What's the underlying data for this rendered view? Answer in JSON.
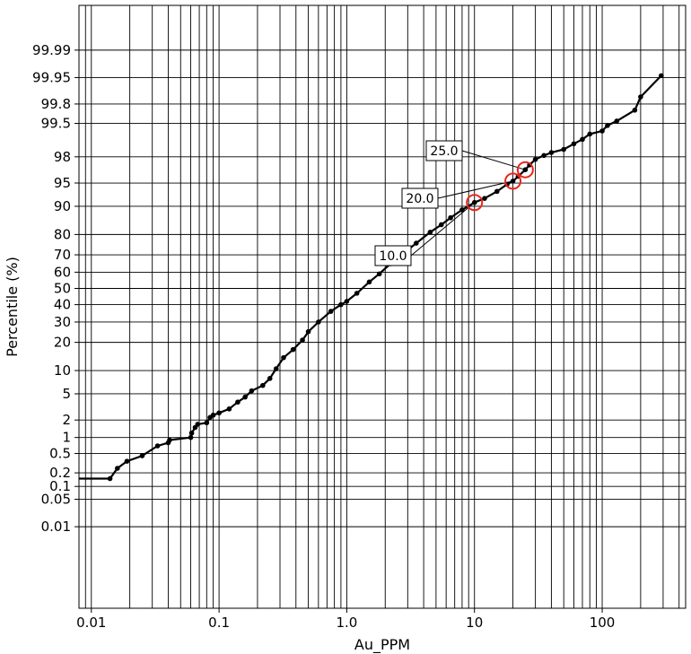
{
  "chart_data": {
    "type": "line",
    "subtype": "log-probability",
    "xlabel": "Au_PPM",
    "ylabel": "Percentile (%)",
    "x_scale": "log",
    "y_scale": "probability",
    "xlim": [
      0.008,
      450
    ],
    "ylim": [
      3e-05,
      99.9995
    ],
    "grid": true,
    "x_tick_labels": [
      {
        "value": 0.01,
        "label": "0.01"
      },
      {
        "value": 0.1,
        "label": "0.1"
      },
      {
        "value": 1,
        "label": "1.0"
      },
      {
        "value": 10,
        "label": "10"
      },
      {
        "value": 100,
        "label": "100"
      }
    ],
    "y_tick_labels": [
      {
        "value": 0.01,
        "label": "0.01"
      },
      {
        "value": 0.05,
        "label": "0.05"
      },
      {
        "value": 0.1,
        "label": "0.1"
      },
      {
        "value": 0.2,
        "label": "0.2"
      },
      {
        "value": 0.5,
        "label": "0.5"
      },
      {
        "value": 1,
        "label": "1"
      },
      {
        "value": 2,
        "label": "2"
      },
      {
        "value": 5,
        "label": "5"
      },
      {
        "value": 10,
        "label": "10"
      },
      {
        "value": 20,
        "label": "20"
      },
      {
        "value": 30,
        "label": "30"
      },
      {
        "value": 40,
        "label": "40"
      },
      {
        "value": 50,
        "label": "50"
      },
      {
        "value": 60,
        "label": "60"
      },
      {
        "value": 70,
        "label": "70"
      },
      {
        "value": 80,
        "label": "80"
      },
      {
        "value": 90,
        "label": "90"
      },
      {
        "value": 95,
        "label": "95"
      },
      {
        "value": 98,
        "label": "98"
      },
      {
        "value": 99.5,
        "label": "99.5"
      },
      {
        "value": 99.8,
        "label": "99.8"
      },
      {
        "value": 99.95,
        "label": "99.95"
      },
      {
        "value": 99.99,
        "label": "99.99"
      }
    ],
    "series": [
      {
        "color": "#000000",
        "points": [
          [
            0.008,
            0.15
          ],
          [
            0.014,
            0.15
          ],
          [
            0.016,
            0.25
          ],
          [
            0.019,
            0.35
          ],
          [
            0.025,
            0.45
          ],
          [
            0.033,
            0.7
          ],
          [
            0.04,
            0.8
          ],
          [
            0.041,
            0.9
          ],
          [
            0.06,
            1.0
          ],
          [
            0.061,
            1.2
          ],
          [
            0.065,
            1.5
          ],
          [
            0.068,
            1.7
          ],
          [
            0.08,
            1.8
          ],
          [
            0.085,
            2.2
          ],
          [
            0.09,
            2.4
          ],
          [
            0.1,
            2.6
          ],
          [
            0.12,
            3.0
          ],
          [
            0.14,
            3.8
          ],
          [
            0.16,
            4.5
          ],
          [
            0.18,
            5.5
          ],
          [
            0.22,
            6.5
          ],
          [
            0.25,
            8.0
          ],
          [
            0.28,
            10.5
          ],
          [
            0.32,
            14.0
          ],
          [
            0.38,
            17.0
          ],
          [
            0.45,
            21.0
          ],
          [
            0.5,
            25.0
          ],
          [
            0.6,
            30.0
          ],
          [
            0.75,
            36.0
          ],
          [
            0.9,
            40.0
          ],
          [
            1.0,
            42.0
          ],
          [
            1.2,
            47.0
          ],
          [
            1.5,
            54.0
          ],
          [
            1.8,
            59.0
          ],
          [
            2.2,
            65.0
          ],
          [
            2.8,
            71.0
          ],
          [
            3.5,
            76.0
          ],
          [
            4.5,
            81.0
          ],
          [
            5.5,
            84.0
          ],
          [
            6.5,
            86.5
          ],
          [
            8.0,
            89.0
          ],
          [
            10.0,
            91.0
          ],
          [
            12.0,
            92.0
          ],
          [
            15.0,
            93.5
          ],
          [
            18.0,
            94.8
          ],
          [
            20.0,
            95.3
          ],
          [
            22.0,
            96.0
          ],
          [
            25.0,
            96.8
          ],
          [
            27.0,
            97.3
          ],
          [
            30.0,
            97.8
          ],
          [
            35.0,
            98.1
          ],
          [
            40.0,
            98.3
          ],
          [
            50.0,
            98.5
          ],
          [
            60.0,
            98.8
          ],
          [
            70.0,
            99.0
          ],
          [
            80.0,
            99.2
          ],
          [
            100.0,
            99.3
          ],
          [
            110.0,
            99.45
          ],
          [
            130.0,
            99.55
          ],
          [
            180.0,
            99.73
          ],
          [
            200.0,
            99.86
          ],
          [
            290.0,
            99.955
          ]
        ]
      }
    ],
    "annotations": [
      {
        "label": "10.0",
        "x": 10.0,
        "y": 91.0
      },
      {
        "label": "20.0",
        "x": 20.0,
        "y": 95.3
      },
      {
        "label": "25.0",
        "x": 25.0,
        "y": 96.8
      }
    ]
  }
}
